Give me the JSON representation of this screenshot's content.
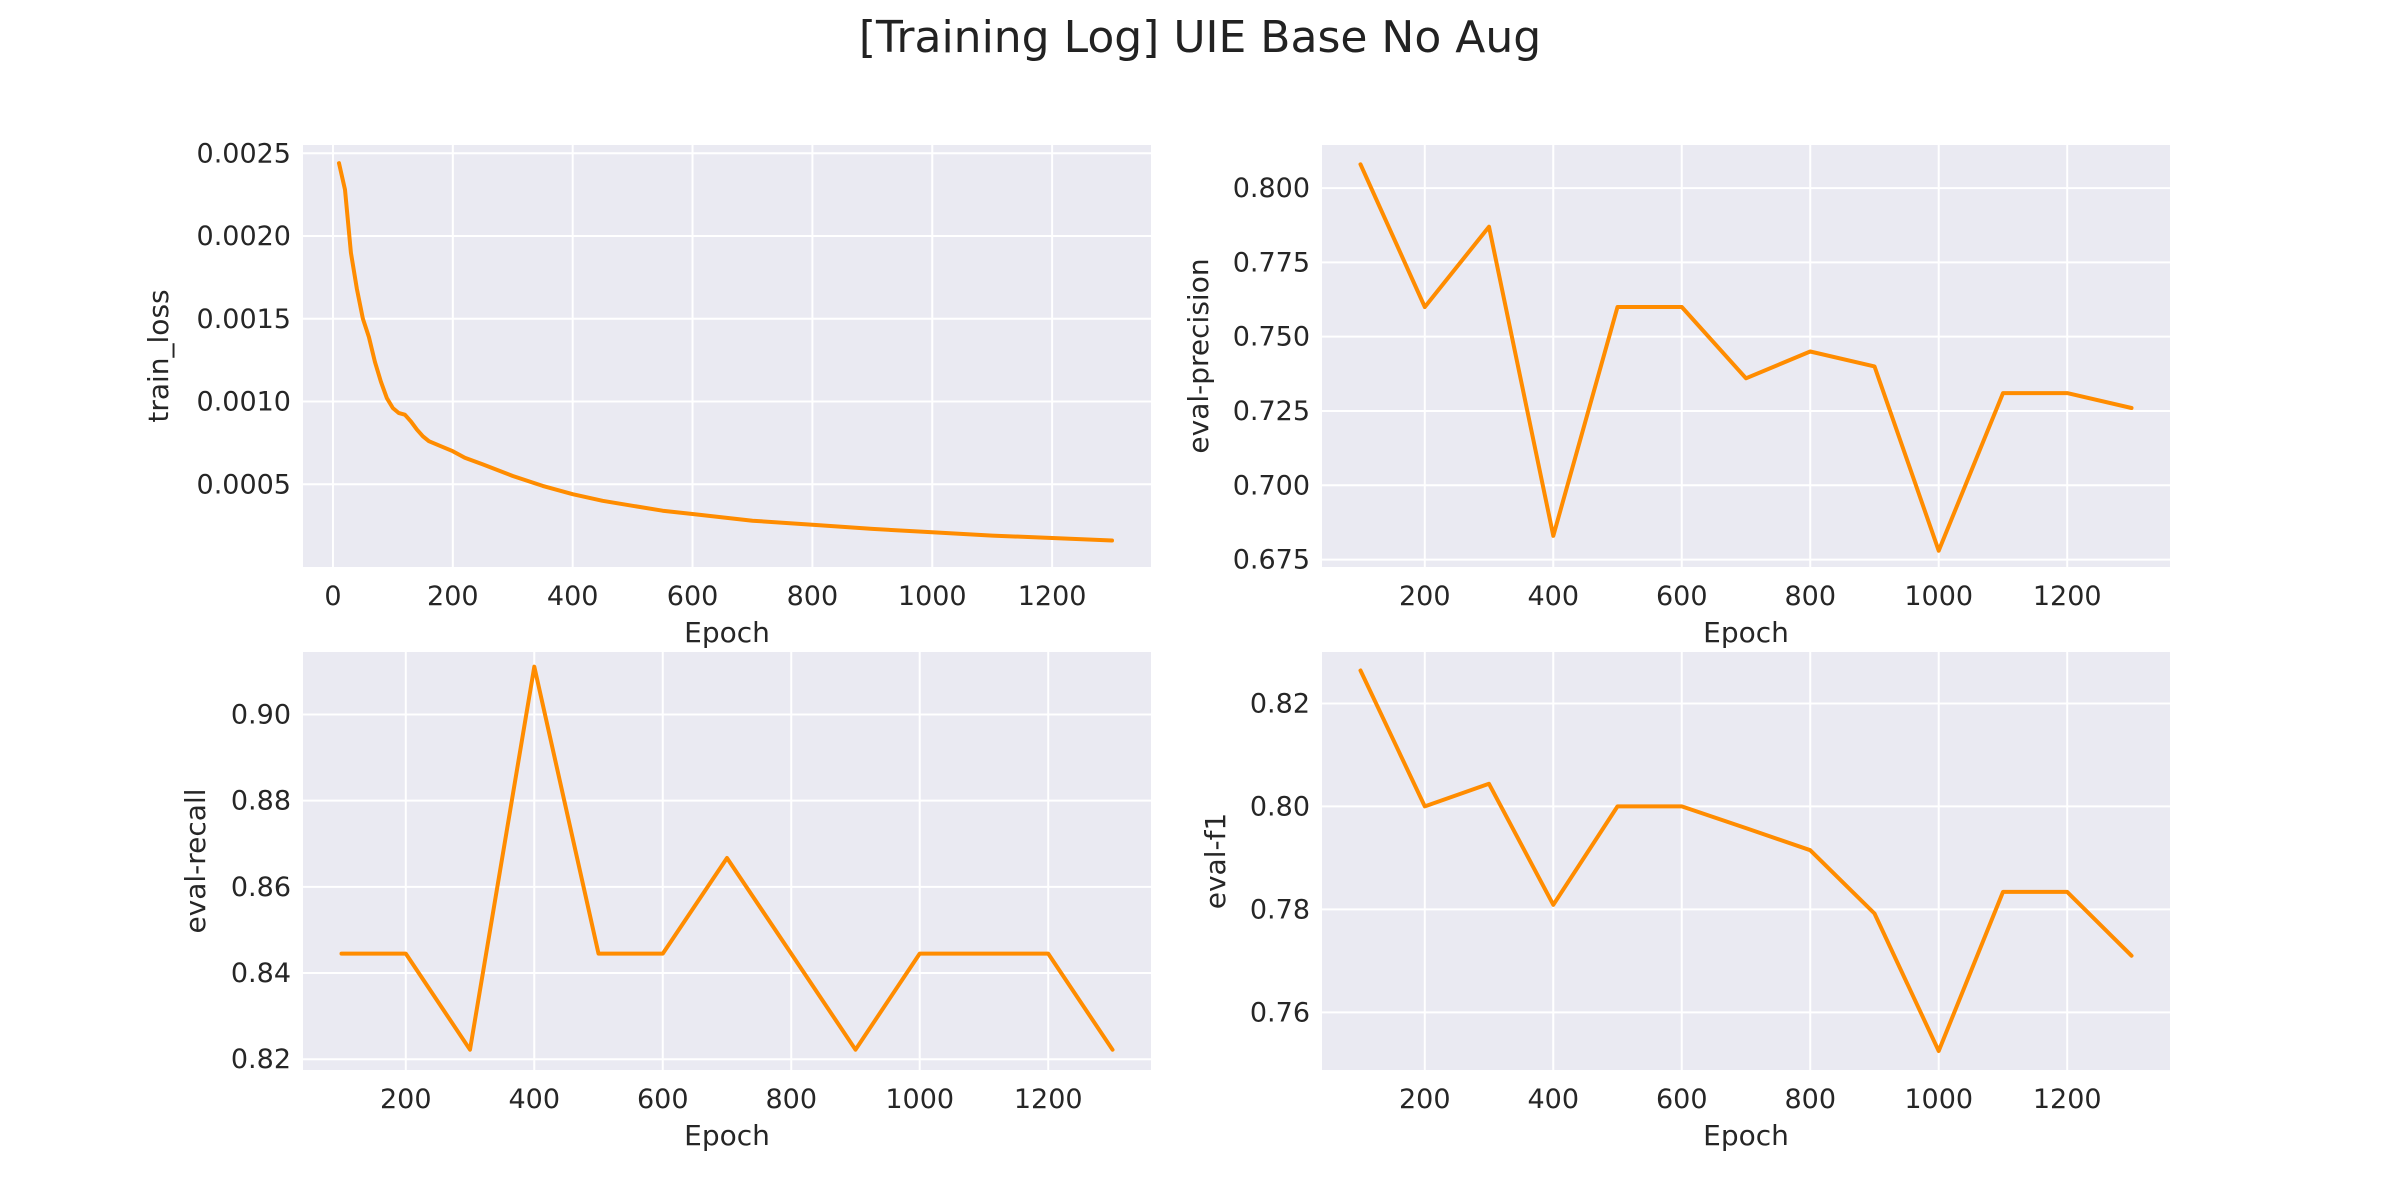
{
  "figure": {
    "title": "[Training Log] UIE Base No Aug"
  },
  "colors": {
    "line": "#ff8c00",
    "panel_bg": "#eaeaf2",
    "grid": "#ffffff",
    "text": "#262626"
  },
  "chart_data": [
    {
      "type": "line",
      "title": "",
      "xlabel": "Epoch",
      "ylabel": "train_loss",
      "xlim": [
        -50,
        1365
      ],
      "ylim": [
        0.0,
        0.00255
      ],
      "xticks": [
        0,
        200,
        400,
        600,
        800,
        1000,
        1200
      ],
      "yticks": [
        0.0005,
        0.001,
        0.0015,
        0.002,
        0.0025
      ],
      "ytick_labels": [
        "0.0005",
        "0.0010",
        "0.0015",
        "0.0020",
        "0.0025"
      ],
      "grid": true,
      "series": [
        {
          "x": [
            10,
            20,
            30,
            40,
            50,
            60,
            70,
            80,
            90,
            100,
            110,
            120,
            130,
            140,
            150,
            160,
            180,
            200,
            220,
            250,
            300,
            350,
            400,
            450,
            500,
            550,
            600,
            650,
            700,
            800,
            900,
            1000,
            1100,
            1200,
            1300
          ],
          "y": [
            0.00244,
            0.00228,
            0.0019,
            0.00168,
            0.0015,
            0.00139,
            0.00124,
            0.00112,
            0.00102,
            0.00096,
            0.00093,
            0.00092,
            0.00088,
            0.00083,
            0.00079,
            0.00076,
            0.00073,
            0.0007,
            0.00066,
            0.00062,
            0.00055,
            0.00049,
            0.00044,
            0.0004,
            0.00037,
            0.00034,
            0.00032,
            0.0003,
            0.00028,
            0.000255,
            0.00023,
            0.00021,
            0.00019,
            0.000175,
            0.00016
          ]
        }
      ]
    },
    {
      "type": "line",
      "title": "",
      "xlabel": "Epoch",
      "ylabel": "eval-precision",
      "xlim": [
        40,
        1360
      ],
      "ylim": [
        0.6725,
        0.8145
      ],
      "xticks": [
        200,
        400,
        600,
        800,
        1000,
        1200
      ],
      "yticks": [
        0.675,
        0.7,
        0.725,
        0.75,
        0.775,
        0.8
      ],
      "ytick_labels": [
        "0.675",
        "0.700",
        "0.725",
        "0.750",
        "0.775",
        "0.800"
      ],
      "grid": true,
      "series": [
        {
          "x": [
            100,
            200,
            300,
            400,
            500,
            600,
            700,
            800,
            900,
            1000,
            1100,
            1200,
            1300
          ],
          "y": [
            0.808,
            0.76,
            0.787,
            0.683,
            0.76,
            0.76,
            0.736,
            0.745,
            0.74,
            0.678,
            0.731,
            0.731,
            0.726
          ]
        }
      ]
    },
    {
      "type": "line",
      "title": "",
      "xlabel": "Epoch",
      "ylabel": "eval-recall",
      "xlim": [
        40,
        1360
      ],
      "ylim": [
        0.8175,
        0.9145
      ],
      "xticks": [
        200,
        400,
        600,
        800,
        1000,
        1200
      ],
      "yticks": [
        0.82,
        0.84,
        0.86,
        0.88,
        0.9
      ],
      "ytick_labels": [
        "0.82",
        "0.84",
        "0.86",
        "0.88",
        "0.90"
      ],
      "grid": true,
      "series": [
        {
          "x": [
            100,
            200,
            300,
            400,
            500,
            600,
            700,
            800,
            900,
            1000,
            1100,
            1200,
            1300
          ],
          "y": [
            0.8445,
            0.8445,
            0.8222,
            0.9111,
            0.8445,
            0.8445,
            0.8667,
            0.8445,
            0.8222,
            0.8445,
            0.8445,
            0.8445,
            0.8222
          ]
        }
      ]
    },
    {
      "type": "line",
      "title": "",
      "xlabel": "Epoch",
      "ylabel": "eval-f1",
      "xlim": [
        40,
        1360
      ],
      "ylim": [
        0.7488,
        0.83
      ],
      "xticks": [
        200,
        400,
        600,
        800,
        1000,
        1200
      ],
      "yticks": [
        0.76,
        0.78,
        0.8,
        0.82
      ],
      "ytick_labels": [
        "0.76",
        "0.78",
        "0.80",
        "0.82"
      ],
      "grid": true,
      "series": [
        {
          "x": [
            100,
            200,
            300,
            400,
            500,
            600,
            700,
            800,
            900,
            1000,
            1100,
            1200,
            1300
          ],
          "y": [
            0.8264,
            0.8,
            0.8044,
            0.7809,
            0.8,
            0.8,
            0.7958,
            0.7915,
            0.7792,
            0.7525,
            0.7834,
            0.7834,
            0.771
          ]
        }
      ]
    }
  ]
}
